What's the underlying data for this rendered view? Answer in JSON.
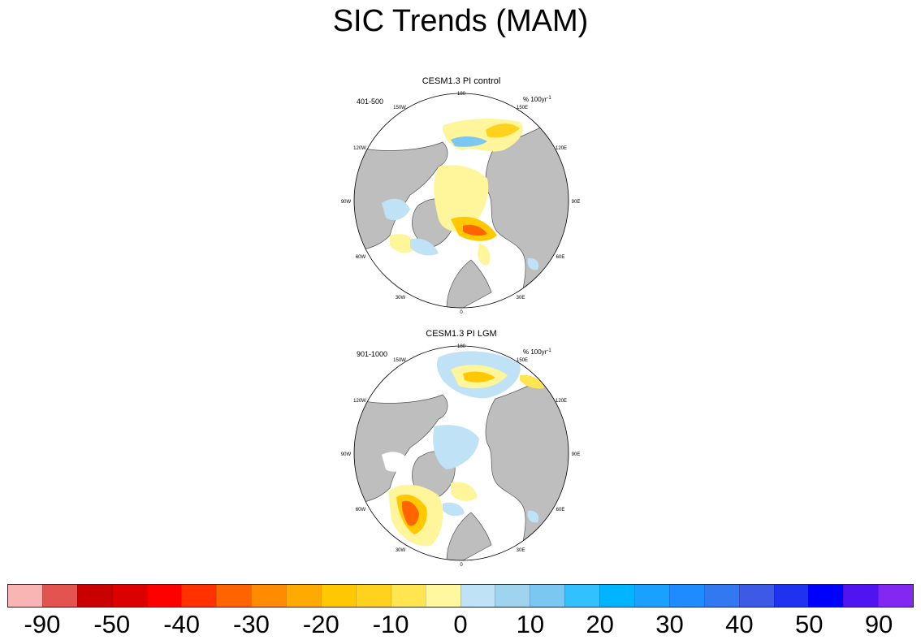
{
  "figure": {
    "title": "SIC Trends (MAM)"
  },
  "panels": [
    {
      "title": "CESM1.3 PI control",
      "period": "401-500",
      "units_base": "% 100yr",
      "units_exp": "-1",
      "lon_labels": [
        "180",
        "150E",
        "120E",
        "90E",
        "60E",
        "30E",
        "0",
        "30W",
        "60W",
        "90W",
        "120W",
        "150W"
      ]
    },
    {
      "title": "CESM1.3 PI LGM",
      "period": "901-1000",
      "units_base": "% 100yr",
      "units_exp": "-1",
      "lon_labels": [
        "180",
        "150E",
        "120E",
        "90E",
        "60E",
        "30E",
        "0",
        "30W",
        "60W",
        "90W",
        "120W",
        "150W"
      ]
    }
  ],
  "colorbar": {
    "colors": [
      "#f9b4b4",
      "#e35450",
      "#c80000",
      "#dc0000",
      "#ff0000",
      "#ff3200",
      "#ff6400",
      "#ff8c00",
      "#ffaa00",
      "#ffc800",
      "#ffd21e",
      "#ffe650",
      "#fff89e",
      "#bfe2f6",
      "#a0d4ee",
      "#7ac8f2",
      "#32c0ff",
      "#00b4ff",
      "#1aa0ff",
      "#1e8cff",
      "#3278f0",
      "#3c5ae6",
      "#1e32f0",
      "#0000ff",
      "#5014f0",
      "#8228f0"
    ],
    "labels": [
      "-90",
      "-50",
      "-40",
      "-30",
      "-20",
      "-10",
      "0",
      "10",
      "20",
      "30",
      "40",
      "50",
      "90"
    ]
  }
}
